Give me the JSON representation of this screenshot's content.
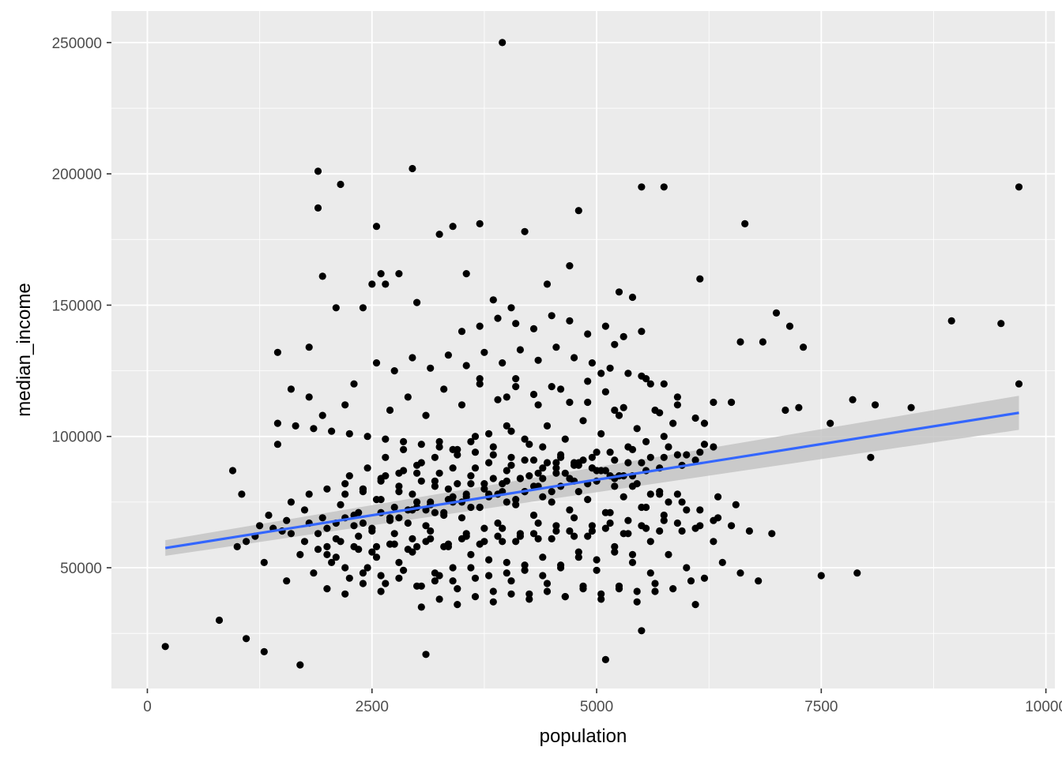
{
  "chart_data": {
    "type": "scatter",
    "title": "",
    "xlabel": "population",
    "ylabel": "median_income",
    "xlim": [
      -400,
      10100
    ],
    "ylim": [
      4000,
      262000
    ],
    "x_ticks": [
      0,
      2500,
      5000,
      7500,
      10000
    ],
    "x_tick_labels": [
      "0",
      "2500",
      "5000",
      "7500",
      "10000"
    ],
    "y_ticks": [
      50000,
      100000,
      150000,
      200000,
      250000
    ],
    "y_tick_labels": [
      "50000",
      "100000",
      "150000",
      "200000",
      "250000"
    ],
    "grid": true,
    "legend": "none",
    "colors": {
      "panel_background": "#ebebeb",
      "grid_major": "#ffffff",
      "points": "#000000",
      "trend_line": "#3366ff",
      "confidence_band": "#c4c4c4"
    },
    "points": {
      "x": [
        200,
        800,
        1100,
        1300,
        1700,
        3100,
        5100,
        5500,
        7500,
        7900,
        3950,
        1900,
        2950,
        2150,
        1900,
        1950,
        2550,
        3250,
        3400,
        3700,
        4200,
        4450,
        4800,
        5250,
        5500,
        5750,
        6650,
        9700,
        8950,
        9500,
        9700,
        2100,
        1450,
        1800,
        2600,
        2800,
        3000,
        3550,
        3850,
        4050,
        4700,
        5200,
        5400,
        6150,
        6600,
        7000,
        7150,
        7300,
        2500,
        2650,
        2400,
        1600,
        1450,
        1050,
        950,
        1000,
        1100,
        1500,
        2000,
        2200,
        1800,
        1950,
        2300,
        3700,
        4000,
        4100,
        4350,
        4600,
        4900,
        5050,
        5200,
        5600,
        5900,
        6200,
        6500,
        6850,
        7100,
        7250,
        7600,
        7850,
        8100,
        8500,
        8050,
        6950,
        6700,
        6300,
        6100,
        5900,
        5700,
        5450,
        5250,
        4950,
        4750,
        4550,
        4300,
        4050,
        3850,
        3650,
        3450,
        3250,
        3050,
        2850,
        2650,
        2450,
        2250,
        2050,
        1850,
        1650,
        1450,
        1250,
        1300,
        1550,
        1750,
        2000,
        2200,
        2400,
        2600,
        2800,
        3000,
        3200,
        3400,
        3600,
        3800,
        4000,
        4200,
        4400,
        4600,
        4800,
        5000,
        5200,
        5400,
        5600,
        5800,
        6000,
        6200,
        6400,
        6600,
        6800,
        2100,
        2300,
        2500,
        2700,
        2900,
        3100,
        3300,
        3500,
        3700,
        3900,
        4100,
        4300,
        4500,
        4700,
        4900,
        5100,
        5300,
        5500,
        5700,
        2150,
        2350,
        2550,
        2750,
        2950,
        3150,
        3350,
        3550,
        3750,
        3950,
        4150,
        4350,
        4550,
        4750,
        4950,
        5150,
        5350,
        5550,
        5750,
        5950,
        6150,
        6350,
        1600,
        1800,
        2000,
        2200,
        2400,
        2600,
        2800,
        3000,
        3200,
        3400,
        3600,
        3800,
        4000,
        4200,
        4400,
        4600,
        4800,
        5000,
        5200,
        5400,
        5600,
        5800,
        6000,
        6200,
        1700,
        1900,
        2100,
        2300,
        2500,
        2700,
        2900,
        3100,
        3300,
        3500,
        3700,
        3900,
        4100,
        4300,
        4500,
        4700,
        4900,
        5100,
        5300,
        5500,
        5700,
        5900,
        6100,
        6300,
        6500,
        2250,
        2450,
        2650,
        2850,
        3050,
        3250,
        3450,
        3650,
        3850,
        4050,
        4250,
        4450,
        4650,
        4850,
        5050,
        5250,
        5450,
        5650,
        5850,
        1350,
        1550,
        1750,
        1950,
        2150,
        2350,
        2550,
        2750,
        2950,
        3150,
        3350,
        3550,
        3750,
        3950,
        4150,
        4350,
        4550,
        4750,
        4950,
        5150,
        5350,
        5550,
        5750,
        5950,
        6150,
        2000,
        2200,
        2400,
        2600,
        2800,
        3000,
        3200,
        3400,
        3600,
        3800,
        4000,
        4200,
        4400,
        4600,
        4800,
        5000,
        5200,
        5400,
        5600,
        2700,
        2900,
        3100,
        3300,
        3500,
        3700,
        3900,
        4100,
        4300,
        4500,
        4700,
        4900,
        5100,
        5300,
        5500,
        5700,
        5900,
        6100,
        6300,
        1200,
        1400,
        1600,
        1800,
        2000,
        2200,
        2400,
        2600,
        2800,
        3000,
        3200,
        3400,
        3600,
        3800,
        4000,
        4200,
        4400,
        4600,
        4800,
        5000,
        5200,
        5400,
        2350,
        2550,
        2750,
        2950,
        3150,
        3350,
        3550,
        3750,
        3950,
        4150,
        4350,
        4550,
        4750,
        4950,
        5150,
        5350,
        5550,
        5750,
        5950,
        6150,
        6350,
        6550,
        2400,
        2600,
        2800,
        3000,
        3200,
        3400,
        3600,
        3800,
        4000,
        4200,
        4400,
        4600,
        4800,
        5000,
        5200,
        5400,
        5600,
        5800,
        6000,
        1850,
        2050,
        2250,
        2450,
        2650,
        2850,
        3050,
        3250,
        3450,
        3650,
        3850,
        4050,
        4250,
        4450,
        4650,
        4850,
        5050,
        5250,
        5450,
        5650,
        2550,
        2750,
        2950,
        3150,
        3350,
        3550,
        3750,
        3950,
        4150,
        4350,
        4550,
        4750,
        4950,
        5150,
        5350,
        5550,
        5750,
        3050,
        3250,
        3450,
        3650,
        3850,
        4050,
        4250,
        4450,
        4650,
        4850,
        5050,
        5250,
        5450,
        5650,
        5850,
        6050,
        2950,
        3150,
        3350,
        3550,
        3750,
        3950,
        4150,
        4350,
        4550,
        4750,
        4950,
        5150,
        5350,
        5550,
        5750,
        3500,
        3700,
        3900,
        4100,
        4300,
        4500,
        4700,
        4900,
        5100,
        5300,
        5500,
        2650,
        2850,
        3050,
        3250,
        3450,
        3650,
        3850,
        4050,
        4250,
        4450,
        4650,
        4850,
        5050,
        2200,
        2400,
        2600,
        2800,
        3000,
        3200,
        3400,
        3600,
        3800,
        4000,
        4200,
        4400,
        1900,
        2100,
        2300,
        2500,
        2700,
        2900,
        3100,
        3300,
        3500,
        3700,
        3900,
        4100,
        4300,
        4500,
        4700,
        4900,
        5100,
        5300,
        5500,
        5700,
        5900,
        6100,
        6300
      ],
      "y": [
        20000,
        30000,
        23000,
        18000,
        13000,
        17000,
        15000,
        26000,
        47000,
        48000,
        250000,
        201000,
        202000,
        196000,
        187000,
        161000,
        180000,
        177000,
        180000,
        181000,
        178000,
        158000,
        186000,
        155000,
        195000,
        195000,
        181000,
        195000,
        144000,
        143000,
        120000,
        149000,
        132000,
        134000,
        162000,
        162000,
        151000,
        162000,
        152000,
        149000,
        165000,
        135000,
        153000,
        160000,
        136000,
        147000,
        142000,
        134000,
        158000,
        158000,
        149000,
        118000,
        97000,
        78000,
        87000,
        58000,
        60000,
        64000,
        58000,
        112000,
        115000,
        108000,
        120000,
        122000,
        115000,
        119000,
        112000,
        118000,
        113000,
        124000,
        110000,
        120000,
        112000,
        105000,
        113000,
        136000,
        110000,
        111000,
        105000,
        114000,
        112000,
        111000,
        92000,
        63000,
        64000,
        60000,
        36000,
        78000,
        79000,
        82000,
        85000,
        88000,
        89000,
        90000,
        91000,
        92000,
        93000,
        94000,
        95000,
        96000,
        97000,
        98000,
        99000,
        100000,
        101000,
        102000,
        103000,
        104000,
        105000,
        66000,
        52000,
        45000,
        60000,
        55000,
        50000,
        48000,
        47000,
        52000,
        58000,
        45000,
        50000,
        55000,
        53000,
        48000,
        51000,
        47000,
        50000,
        54000,
        49000,
        56000,
        52000,
        48000,
        55000,
        50000,
        46000,
        52000,
        48000,
        45000,
        67000,
        70000,
        65000,
        68000,
        72000,
        66000,
        71000,
        69000,
        73000,
        67000,
        74000,
        70000,
        75000,
        72000,
        76000,
        71000,
        77000,
        73000,
        78000,
        60000,
        62000,
        58000,
        63000,
        61000,
        64000,
        59000,
        62000,
        65000,
        60000,
        63000,
        61000,
        66000,
        62000,
        64000,
        67000,
        63000,
        65000,
        68000,
        64000,
        66000,
        69000,
        75000,
        78000,
        80000,
        82000,
        79000,
        84000,
        81000,
        86000,
        83000,
        88000,
        85000,
        90000,
        87000,
        91000,
        88000,
        92000,
        89000,
        94000,
        91000,
        95000,
        92000,
        96000,
        93000,
        97000,
        55000,
        57000,
        54000,
        58000,
        56000,
        59000,
        57000,
        60000,
        58000,
        61000,
        59000,
        62000,
        60000,
        63000,
        61000,
        64000,
        62000,
        65000,
        63000,
        66000,
        64000,
        67000,
        65000,
        68000,
        66000,
        85000,
        88000,
        92000,
        95000,
        90000,
        98000,
        93000,
        100000,
        96000,
        102000,
        97000,
        104000,
        99000,
        106000,
        101000,
        108000,
        103000,
        110000,
        105000,
        70000,
        68000,
        72000,
        69000,
        74000,
        71000,
        76000,
        73000,
        78000,
        75000,
        80000,
        77000,
        82000,
        79000,
        84000,
        81000,
        86000,
        83000,
        88000,
        85000,
        90000,
        87000,
        92000,
        89000,
        94000,
        42000,
        40000,
        44000,
        41000,
        46000,
        43000,
        48000,
        45000,
        50000,
        47000,
        52000,
        49000,
        54000,
        51000,
        56000,
        53000,
        58000,
        55000,
        60000,
        110000,
        115000,
        108000,
        118000,
        112000,
        120000,
        114000,
        122000,
        116000,
        119000,
        113000,
        121000,
        117000,
        111000,
        123000,
        109000,
        115000,
        107000,
        113000,
        62000,
        65000,
        63000,
        67000,
        65000,
        69000,
        67000,
        71000,
        69000,
        73000,
        71000,
        75000,
        73000,
        77000,
        75000,
        79000,
        77000,
        81000,
        79000,
        83000,
        81000,
        85000,
        57000,
        54000,
        59000,
        56000,
        61000,
        58000,
        63000,
        60000,
        65000,
        62000,
        67000,
        64000,
        69000,
        66000,
        71000,
        68000,
        73000,
        70000,
        75000,
        72000,
        77000,
        74000,
        80000,
        83000,
        86000,
        89000,
        92000,
        95000,
        98000,
        101000,
        104000,
        99000,
        96000,
        93000,
        90000,
        87000,
        84000,
        81000,
        78000,
        75000,
        72000,
        48000,
        52000,
        46000,
        50000,
        44000,
        49000,
        43000,
        47000,
        42000,
        46000,
        41000,
        45000,
        40000,
        44000,
        39000,
        43000,
        38000,
        42000,
        37000,
        41000,
        128000,
        125000,
        130000,
        126000,
        131000,
        127000,
        132000,
        128000,
        133000,
        129000,
        134000,
        130000,
        128000,
        126000,
        124000,
        122000,
        120000,
        35000,
        38000,
        36000,
        39000,
        37000,
        40000,
        38000,
        41000,
        39000,
        42000,
        40000,
        43000,
        41000,
        44000,
        42000,
        45000,
        72000,
        74000,
        76000,
        78000,
        80000,
        82000,
        84000,
        86000,
        88000,
        90000,
        92000,
        94000,
        96000,
        98000,
        100000,
        140000,
        142000,
        145000,
        143000,
        141000,
        146000,
        144000,
        139000,
        142000,
        138000,
        140000,
        85000,
        87000,
        83000,
        86000,
        82000,
        88000,
        84000,
        89000,
        85000,
        90000,
        86000,
        91000,
        87000,
        78000,
        80000,
        76000,
        79000,
        75000,
        81000,
        77000,
        82000,
        78000,
        83000,
        79000,
        84000,
        63000,
        61000,
        66000,
        64000,
        69000,
        67000,
        72000,
        70000,
        75000,
        73000,
        78000,
        76000,
        81000,
        79000,
        84000,
        82000,
        87000,
        85000,
        90000,
        88000,
        93000,
        91000,
        96000
      ]
    },
    "trend_line": {
      "method": "lm",
      "x": [
        200,
        9700
      ],
      "y": [
        57500,
        109000
      ],
      "confidence_band_lower": [
        54500,
        102500
      ],
      "confidence_band_upper": [
        60500,
        115500
      ]
    }
  }
}
